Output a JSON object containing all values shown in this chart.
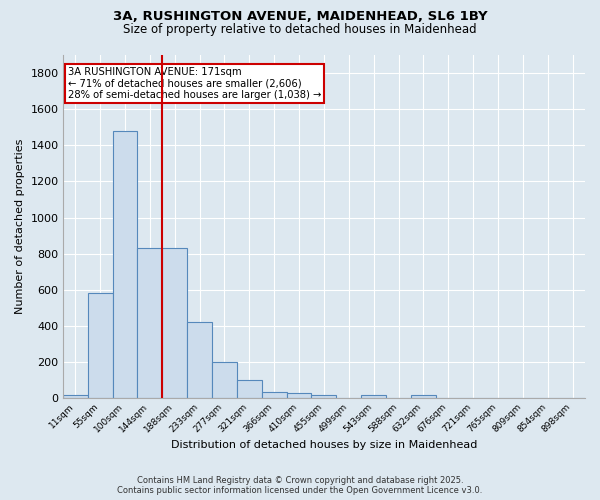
{
  "title_line1": "3A, RUSHINGTON AVENUE, MAIDENHEAD, SL6 1BY",
  "title_line2": "Size of property relative to detached houses in Maidenhead",
  "xlabel": "Distribution of detached houses by size in Maidenhead",
  "ylabel": "Number of detached properties",
  "bar_labels": [
    "11sqm",
    "55sqm",
    "100sqm",
    "144sqm",
    "188sqm",
    "233sqm",
    "277sqm",
    "321sqm",
    "366sqm",
    "410sqm",
    "455sqm",
    "499sqm",
    "543sqm",
    "588sqm",
    "632sqm",
    "676sqm",
    "721sqm",
    "765sqm",
    "809sqm",
    "854sqm",
    "898sqm"
  ],
  "bar_heights": [
    20,
    580,
    1480,
    830,
    830,
    420,
    200,
    100,
    35,
    30,
    20,
    0,
    15,
    0,
    15,
    0,
    0,
    0,
    0,
    0,
    0
  ],
  "bar_color": "#ccdcec",
  "bar_edge_color": "#5588bb",
  "ylim": [
    0,
    1900
  ],
  "yticks": [
    0,
    200,
    400,
    600,
    800,
    1000,
    1200,
    1400,
    1600,
    1800
  ],
  "vline_color": "#cc0000",
  "annotation_title": "3A RUSHINGTON AVENUE: 171sqm",
  "annotation_line1": "← 71% of detached houses are smaller (2,606)",
  "annotation_line2": "28% of semi-detached houses are larger (1,038) →",
  "annotation_box_color": "white",
  "annotation_box_edge": "#cc0000",
  "footer_line1": "Contains HM Land Registry data © Crown copyright and database right 2025.",
  "footer_line2": "Contains public sector information licensed under the Open Government Licence v3.0.",
  "bg_color": "#dde8f0",
  "plot_bg_color": "#dde8f0",
  "grid_color": "white"
}
